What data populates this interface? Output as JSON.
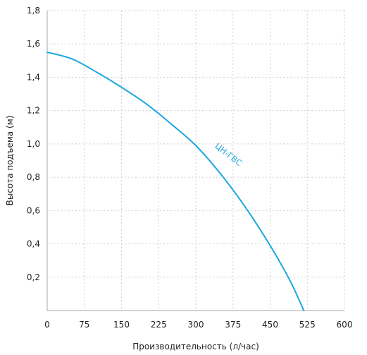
{
  "chart_data": {
    "type": "line",
    "xlabel": "Производительность (л/час)",
    "ylabel": "Высота подъема (м)",
    "xlim": [
      0,
      600
    ],
    "ylim": [
      0,
      1.8
    ],
    "x_ticks": [
      "0",
      "75",
      "150",
      "225",
      "300",
      "375",
      "450",
      "525",
      "600"
    ],
    "y_ticks": [
      "0,2",
      "0,4",
      "0,6",
      "0,8",
      "1,0",
      "1,2",
      "1,4",
      "1,6",
      "1,8"
    ],
    "grid": "dashed",
    "series": [
      {
        "name": "ЦН-ГВС",
        "color": "#1ea7e0",
        "points": [
          [
            0,
            1.55
          ],
          [
            50,
            1.51
          ],
          [
            100,
            1.43
          ],
          [
            150,
            1.34
          ],
          [
            200,
            1.24
          ],
          [
            250,
            1.12
          ],
          [
            300,
            0.99
          ],
          [
            350,
            0.82
          ],
          [
            400,
            0.62
          ],
          [
            450,
            0.39
          ],
          [
            490,
            0.18
          ],
          [
            518,
            0.0
          ]
        ]
      }
    ]
  }
}
